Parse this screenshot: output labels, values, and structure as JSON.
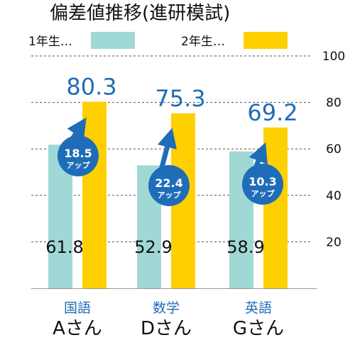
{
  "colors": {
    "year1": "#9FD8D5",
    "year2": "#FFD000",
    "accent": "#1F6DB8",
    "grid": "#555555",
    "text": "#111111",
    "badge_text": "#ffffff"
  },
  "chart_data": {
    "type": "bar",
    "title": "偏差値推移(進研模試)",
    "ylim": [
      0,
      100
    ],
    "yticks": [
      "20",
      "40",
      "60",
      "80",
      "100"
    ],
    "grid": "dashed horizontal",
    "legend": {
      "placement": "top",
      "entries": [
        "1年生…",
        "2年生…"
      ]
    },
    "categories": [
      {
        "subject": "国語",
        "student": "Aさん"
      },
      {
        "subject": "数学",
        "student": "Dさん"
      },
      {
        "subject": "英語",
        "student": "Gさん"
      }
    ],
    "series": [
      {
        "name": "1年生…",
        "values": [
          61.8,
          52.9,
          58.9
        ],
        "labels": [
          "61.8",
          "52.9",
          "58.9"
        ]
      },
      {
        "name": "2年生…",
        "values": [
          80.3,
          75.3,
          69.2
        ],
        "labels": [
          "80.3",
          "75.3",
          "69.2"
        ]
      }
    ],
    "increase": {
      "values": [
        "18.5",
        "22.4",
        "10.3"
      ],
      "suffix": "アップ"
    }
  }
}
